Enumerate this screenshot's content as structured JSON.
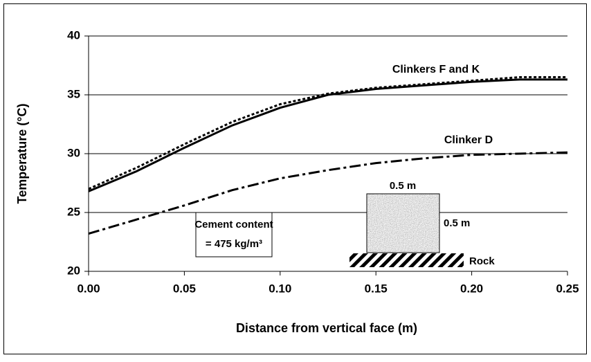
{
  "chart_data": {
    "type": "line",
    "xlabel": "Distance from vertical face (m)",
    "ylabel": "Temperature (°C)",
    "x": [
      0,
      0.025,
      0.05,
      0.075,
      0.1,
      0.125,
      0.15,
      0.175,
      0.2,
      0.225,
      0.25
    ],
    "series": [
      {
        "color": "#000000",
        "line_style": "solid",
        "values": [
          26.8,
          28.5,
          30.5,
          32.4,
          33.9,
          35.0,
          35.5,
          35.8,
          36.1,
          36.3,
          36.3
        ]
      },
      {
        "color": "#000000",
        "line_style": "dotted",
        "values": [
          27.0,
          28.8,
          30.8,
          32.7,
          34.2,
          35.1,
          35.6,
          35.9,
          36.2,
          36.5,
          36.5
        ]
      },
      {
        "color": "#000000",
        "line_style": "dash-dot",
        "values": [
          23.2,
          24.4,
          25.6,
          26.9,
          27.9,
          28.6,
          29.2,
          29.6,
          29.9,
          30.0,
          30.1
        ]
      }
    ],
    "xlim": [
      0,
      0.25
    ],
    "xticks": [
      {
        "value": 0,
        "label": "0.00"
      },
      {
        "value": 0.05,
        "label": "0.05"
      },
      {
        "value": 0.1,
        "label": "0.10"
      },
      {
        "value": 0.15,
        "label": "0.15"
      },
      {
        "value": 0.2,
        "label": "0.20"
      },
      {
        "value": 0.25,
        "label": "0.25"
      }
    ],
    "ylim": [
      20,
      40
    ],
    "yticks": [
      20,
      25,
      30,
      35,
      40
    ],
    "grid": true,
    "annotations": {
      "fk": "Clinkers F and K",
      "d": "Clinker D",
      "cement": [
        "Cement content",
        "= 475 kg/m³"
      ],
      "width": "0.5 m",
      "height": "0.5 m",
      "rock": "Rock"
    }
  }
}
